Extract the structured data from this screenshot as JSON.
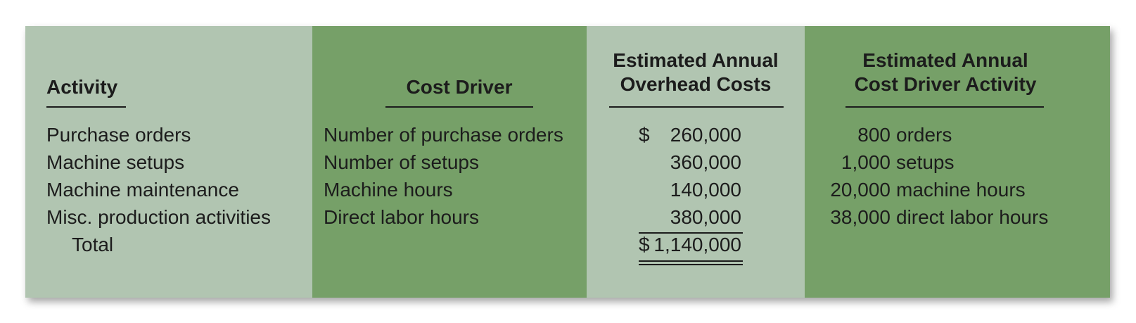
{
  "colors": {
    "light_column": "#b1c5b1",
    "dark_column": "#76a068"
  },
  "headers": {
    "activity": "Activity",
    "cost_driver": "Cost Driver",
    "overhead_line1": "Estimated Annual",
    "overhead_line2": "Overhead Costs",
    "driver_activity_line1": "Estimated Annual",
    "driver_activity_line2": "Cost Driver Activity"
  },
  "rows": [
    {
      "activity": "Purchase orders",
      "cost_driver": "Number of purchase orders",
      "currency": "$",
      "overhead": "260,000",
      "driver_qty": "800",
      "driver_unit": "orders"
    },
    {
      "activity": "Machine setups",
      "cost_driver": "Number of setups",
      "currency": "",
      "overhead": "360,000",
      "driver_qty": "1,000",
      "driver_unit": "setups"
    },
    {
      "activity": "Machine maintenance",
      "cost_driver": "Machine hours",
      "currency": "",
      "overhead": "140,000",
      "driver_qty": "20,000",
      "driver_unit": "machine hours"
    },
    {
      "activity": "Misc. production activities",
      "cost_driver": "Direct labor hours",
      "currency": "",
      "overhead": "380,000",
      "driver_qty": "38,000",
      "driver_unit": "direct labor hours"
    }
  ],
  "total": {
    "label": "Total",
    "currency": "$",
    "overhead": "1,140,000"
  }
}
